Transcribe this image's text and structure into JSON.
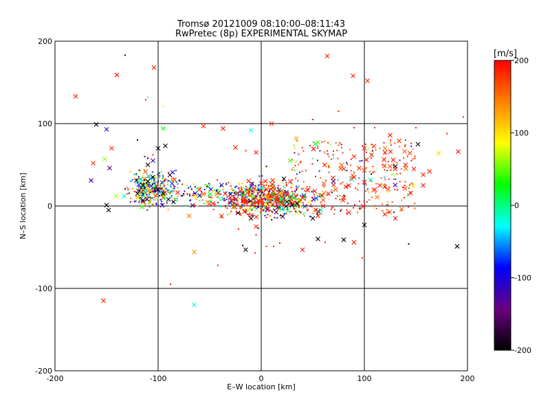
{
  "chart_data": {
    "type": "scatter",
    "title": "Tromsø 20121009 08:10:00–08:11:43",
    "subtitle": "RwPretec (8p) EXPERIMENTAL SKYMAP",
    "xlabel": "E–W location [km]",
    "ylabel": "N–S location [km]",
    "xlim": [
      -200,
      200
    ],
    "ylim": [
      -200,
      200
    ],
    "xticks": [
      "-200",
      "-100",
      "0",
      "100",
      "200"
    ],
    "yticks": [
      "-200",
      "-100",
      "0",
      "100",
      "200"
    ],
    "grid": true,
    "colorbar": {
      "label": "[m/s]",
      "range": [
        -200,
        200
      ],
      "ticks": [
        "200",
        "100",
        "0",
        "-100",
        "-200"
      ],
      "colors": [
        "#000000",
        "#6a0080",
        "#0000ff",
        "#00ffff",
        "#00ff00",
        "#ffff00",
        "#ff8000",
        "#ff0000"
      ]
    },
    "series": [
      {
        "marker": "x",
        "points": [
          [
            -180,
            133,
            190
          ],
          [
            -140,
            159,
            195
          ],
          [
            -104,
            168,
            190
          ],
          [
            -160,
            99,
            -200
          ],
          [
            -150,
            93,
            -120
          ],
          [
            -163,
            52,
            180
          ],
          [
            -165,
            31,
            -120
          ],
          [
            -152,
            57,
            60
          ],
          [
            -147,
            46,
            -150
          ],
          [
            -145,
            70,
            180
          ],
          [
            -100,
            70,
            -200
          ],
          [
            -93,
            73,
            -200
          ],
          [
            -150,
            1,
            -200
          ],
          [
            -148,
            -5,
            -200
          ],
          [
            -105,
            55,
            -120
          ],
          [
            -110,
            50,
            -200
          ],
          [
            -95,
            94,
            30
          ],
          [
            -56,
            97,
            180
          ],
          [
            -37,
            94,
            190
          ],
          [
            -10,
            92,
            -30
          ],
          [
            -25,
            71,
            180
          ],
          [
            -5,
            65,
            190
          ],
          [
            10,
            100,
            180
          ],
          [
            34,
            82,
            130
          ],
          [
            28,
            55,
            40
          ],
          [
            64,
            182,
            190
          ],
          [
            89,
            158,
            190
          ],
          [
            103,
            152,
            190
          ],
          [
            100,
            70,
            180
          ],
          [
            95,
            46,
            180
          ],
          [
            80,
            45,
            180
          ],
          [
            90,
            60,
            180
          ],
          [
            102,
            56,
            190
          ],
          [
            107,
            62,
            190
          ],
          [
            120,
            70,
            150
          ],
          [
            120,
            65,
            190
          ],
          [
            125,
            86,
            190
          ],
          [
            130,
            48,
            -200
          ],
          [
            128,
            56,
            190
          ],
          [
            152,
            75,
            -200
          ],
          [
            172,
            64,
            100
          ],
          [
            191,
            66,
            190
          ],
          [
            148,
            45,
            190
          ],
          [
            157,
            38,
            190
          ],
          [
            106,
            32,
            -10
          ],
          [
            100,
            29,
            190
          ],
          [
            100,
            -23,
            -200
          ],
          [
            80,
            -41,
            -200
          ],
          [
            90,
            -44,
            190
          ],
          [
            55,
            -40,
            -200
          ],
          [
            40,
            -53,
            190
          ],
          [
            -15,
            -53,
            -200
          ],
          [
            -65,
            -56,
            130
          ],
          [
            -70,
            -12,
            150
          ],
          [
            -65,
            -120,
            -20
          ],
          [
            -153,
            -115,
            190
          ],
          [
            -90,
            8,
            -200
          ],
          [
            -120,
            15,
            -200
          ],
          [
            -115,
            25,
            -200
          ],
          [
            -110,
            30,
            -200
          ],
          [
            -105,
            35,
            -200
          ],
          [
            -100,
            20,
            -200
          ],
          [
            -95,
            15,
            -200
          ],
          [
            -85,
            5,
            -200
          ],
          [
            -60,
            20,
            190
          ],
          [
            -35,
            15,
            190
          ],
          [
            -30,
            10,
            190
          ],
          [
            -20,
            18,
            190
          ],
          [
            -15,
            5,
            190
          ],
          [
            -10,
            -15,
            -200
          ],
          [
            -5,
            -25,
            190
          ],
          [
            0,
            5,
            190
          ],
          [
            5,
            20,
            190
          ],
          [
            10,
            12,
            190
          ],
          [
            15,
            8,
            190
          ],
          [
            20,
            3,
            190
          ],
          [
            22,
            33,
            -200
          ],
          [
            25,
            5,
            -200
          ],
          [
            30,
            1,
            -200
          ],
          [
            35,
            3,
            -200
          ],
          [
            40,
            10,
            190
          ],
          [
            45,
            19,
            190
          ],
          [
            50,
            -15,
            -200
          ],
          [
            55,
            -12,
            190
          ],
          [
            60,
            0,
            190
          ],
          [
            65,
            15,
            190
          ],
          [
            70,
            30,
            -150
          ],
          [
            80,
            10,
            190
          ],
          [
            85,
            25,
            190
          ],
          [
            90,
            35,
            190
          ],
          [
            110,
            20,
            190
          ],
          [
            115,
            25,
            190
          ],
          [
            120,
            -10,
            190
          ],
          [
            130,
            -15,
            190
          ],
          [
            130,
            45,
            190
          ],
          [
            140,
            50,
            190
          ],
          [
            157,
            25,
            190
          ],
          [
            163,
            42,
            190
          ],
          [
            190,
            -49,
            -200
          ],
          [
            85,
            -8,
            190
          ]
        ]
      },
      {
        "marker": "dot",
        "points": [
          [
            -132,
            183,
            -200
          ],
          [
            -110,
            132,
            -30
          ],
          [
            -112,
            129,
            190
          ],
          [
            -95,
            121,
            80
          ],
          [
            -120,
            80,
            -200
          ],
          [
            -113,
            60,
            -150
          ],
          [
            -105,
            62,
            190
          ],
          [
            -110,
            58,
            -200
          ],
          [
            -88,
            -95,
            190
          ],
          [
            -42,
            -72,
            190
          ],
          [
            -15,
            67,
            190
          ],
          [
            5,
            48,
            -200
          ],
          [
            50,
            105,
            190
          ],
          [
            75,
            115,
            190
          ],
          [
            90,
            95,
            190
          ],
          [
            110,
            95,
            180
          ],
          [
            140,
            80,
            190
          ],
          [
            150,
            95,
            190
          ],
          [
            98,
            -63,
            190
          ],
          [
            143,
            -46,
            -200
          ],
          [
            180,
            88,
            190
          ],
          [
            196,
            108,
            190
          ],
          [
            -24,
            -8,
            190
          ],
          [
            -22,
            -28,
            190
          ],
          [
            5,
            -49,
            190
          ],
          [
            12,
            -49,
            190
          ],
          [
            -3,
            -27,
            -200
          ],
          [
            -5,
            -35,
            190
          ],
          [
            -18,
            -48,
            -200
          ],
          [
            -6,
            -57,
            190
          ],
          [
            18,
            -45,
            190
          ],
          [
            62,
            -44,
            190
          ]
        ]
      }
    ]
  }
}
